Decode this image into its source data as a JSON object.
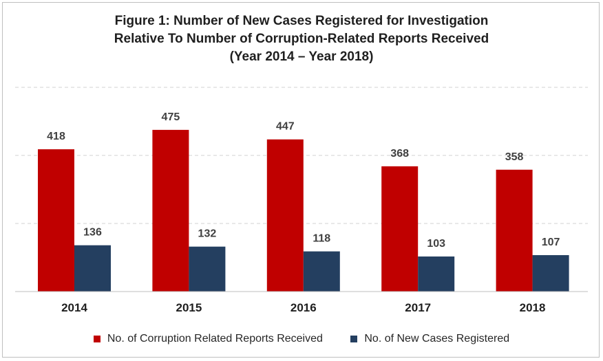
{
  "chart_data": {
    "type": "bar",
    "title_lines": [
      "Figure 1: Number of New Cases Registered for Investigation",
      "Relative To Number of Corruption-Related Reports Received",
      "(Year 2014 – Year 2018)"
    ],
    "categories": [
      "2014",
      "2015",
      "2016",
      "2017",
      "2018"
    ],
    "series": [
      {
        "name": "No. of Corruption Related Reports Received",
        "values": [
          418,
          475,
          447,
          368,
          358
        ],
        "color": "#c00000"
      },
      {
        "name": "No. of New Cases Registered",
        "values": [
          136,
          132,
          118,
          103,
          107
        ],
        "color": "#243f60"
      }
    ],
    "xlabel": "",
    "ylabel": "",
    "ylim": [
      0,
      600
    ],
    "grid": true,
    "legend_position": "bottom"
  }
}
